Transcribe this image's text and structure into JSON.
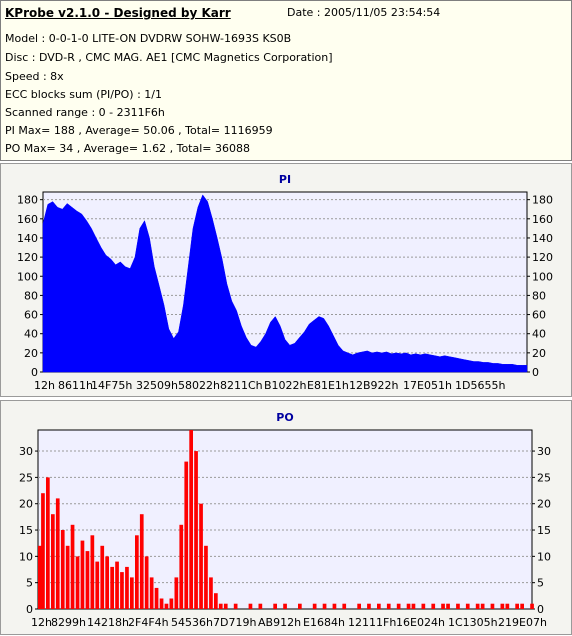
{
  "header": {
    "title": "KProbe v2.1.0 - Designed by Karr",
    "date": "Date : 2005/11/05 23:54:54",
    "lines": [
      "Model : 0-0-1-0 LITE-ON DVDRW SOHW-1693S KS0B",
      "Disc : DVD-R , CMC MAG. AE1 [CMC Magnetics Corporation]",
      "Speed : 8x",
      "ECC blocks sum (PI/PO) : 1/1",
      "Scanned range : 0 - 2311F6h",
      "PI Max= 188 , Average= 50.06 , Total= 1116959",
      "PO Max= 34 , Average= 1.62 , Total= 36088"
    ]
  },
  "chart_data": [
    {
      "type": "area",
      "title": "PI",
      "color": "#0000ff",
      "ylim": [
        0,
        188
      ],
      "yticks": [
        0,
        20,
        40,
        60,
        80,
        100,
        120,
        140,
        160,
        180
      ],
      "xticks": [
        "12h",
        "8611h",
        "14F75h",
        "32509h",
        "58022h",
        "8211Ch",
        "B1022h",
        "E81E1h",
        "12B922h",
        "17E051h",
        "1D5655h"
      ],
      "grid": true,
      "x_range": [
        0,
        1
      ],
      "points": [
        [
          0.0,
          155
        ],
        [
          0.01,
          175
        ],
        [
          0.02,
          178
        ],
        [
          0.03,
          172
        ],
        [
          0.04,
          170
        ],
        [
          0.05,
          176
        ],
        [
          0.06,
          172
        ],
        [
          0.07,
          168
        ],
        [
          0.08,
          165
        ],
        [
          0.09,
          158
        ],
        [
          0.1,
          150
        ],
        [
          0.11,
          140
        ],
        [
          0.12,
          130
        ],
        [
          0.13,
          122
        ],
        [
          0.14,
          118
        ],
        [
          0.15,
          112
        ],
        [
          0.16,
          115
        ],
        [
          0.17,
          110
        ],
        [
          0.18,
          108
        ],
        [
          0.19,
          120
        ],
        [
          0.2,
          150
        ],
        [
          0.21,
          158
        ],
        [
          0.22,
          140
        ],
        [
          0.23,
          110
        ],
        [
          0.24,
          90
        ],
        [
          0.25,
          70
        ],
        [
          0.26,
          45
        ],
        [
          0.27,
          35
        ],
        [
          0.28,
          42
        ],
        [
          0.29,
          70
        ],
        [
          0.3,
          110
        ],
        [
          0.31,
          150
        ],
        [
          0.32,
          172
        ],
        [
          0.33,
          185
        ],
        [
          0.34,
          178
        ],
        [
          0.35,
          160
        ],
        [
          0.36,
          140
        ],
        [
          0.37,
          118
        ],
        [
          0.38,
          92
        ],
        [
          0.39,
          74
        ],
        [
          0.4,
          64
        ],
        [
          0.41,
          48
        ],
        [
          0.42,
          36
        ],
        [
          0.43,
          28
        ],
        [
          0.44,
          26
        ],
        [
          0.45,
          32
        ],
        [
          0.46,
          40
        ],
        [
          0.47,
          52
        ],
        [
          0.48,
          58
        ],
        [
          0.49,
          48
        ],
        [
          0.5,
          34
        ],
        [
          0.51,
          28
        ],
        [
          0.52,
          30
        ],
        [
          0.53,
          36
        ],
        [
          0.54,
          42
        ],
        [
          0.55,
          50
        ],
        [
          0.56,
          54
        ],
        [
          0.57,
          58
        ],
        [
          0.58,
          56
        ],
        [
          0.59,
          48
        ],
        [
          0.6,
          38
        ],
        [
          0.61,
          28
        ],
        [
          0.62,
          22
        ],
        [
          0.63,
          20
        ],
        [
          0.64,
          18
        ],
        [
          0.65,
          20
        ],
        [
          0.66,
          21
        ],
        [
          0.67,
          22
        ],
        [
          0.68,
          20
        ],
        [
          0.69,
          21
        ],
        [
          0.7,
          20
        ],
        [
          0.71,
          21
        ],
        [
          0.72,
          19
        ],
        [
          0.73,
          20
        ],
        [
          0.74,
          19
        ],
        [
          0.75,
          20
        ],
        [
          0.76,
          18
        ],
        [
          0.77,
          19
        ],
        [
          0.78,
          18
        ],
        [
          0.79,
          19
        ],
        [
          0.8,
          18
        ],
        [
          0.81,
          17
        ],
        [
          0.82,
          16
        ],
        [
          0.83,
          17
        ],
        [
          0.84,
          16
        ],
        [
          0.85,
          15
        ],
        [
          0.86,
          14
        ],
        [
          0.87,
          13
        ],
        [
          0.88,
          12
        ],
        [
          0.89,
          11
        ],
        [
          0.9,
          11
        ],
        [
          0.91,
          10
        ],
        [
          0.92,
          10
        ],
        [
          0.93,
          9
        ],
        [
          0.94,
          9
        ],
        [
          0.95,
          8
        ],
        [
          0.96,
          8
        ],
        [
          0.97,
          8
        ],
        [
          0.98,
          7
        ],
        [
          0.99,
          7
        ],
        [
          1.0,
          7
        ]
      ]
    },
    {
      "type": "bar",
      "title": "PO",
      "color": "#ff0000",
      "ylim": [
        0,
        34
      ],
      "yticks": [
        0,
        5,
        10,
        15,
        20,
        25,
        30
      ],
      "xticks": [
        "12h",
        "8299h",
        "14218h",
        "2F4F4h",
        "54536h",
        "7D719h",
        "AB912h",
        "E1684h",
        "12111Fh",
        "16E024h",
        "1C1305h",
        "219E07h"
      ],
      "grid": true,
      "x_range": [
        0,
        1
      ],
      "points": [
        [
          0.0,
          12
        ],
        [
          0.01,
          22
        ],
        [
          0.02,
          25
        ],
        [
          0.03,
          18
        ],
        [
          0.04,
          21
        ],
        [
          0.05,
          15
        ],
        [
          0.06,
          12
        ],
        [
          0.07,
          16
        ],
        [
          0.08,
          10
        ],
        [
          0.09,
          13
        ],
        [
          0.1,
          11
        ],
        [
          0.11,
          14
        ],
        [
          0.12,
          9
        ],
        [
          0.13,
          12
        ],
        [
          0.14,
          10
        ],
        [
          0.15,
          8
        ],
        [
          0.16,
          9
        ],
        [
          0.17,
          7
        ],
        [
          0.18,
          8
        ],
        [
          0.19,
          6
        ],
        [
          0.2,
          14
        ],
        [
          0.21,
          18
        ],
        [
          0.22,
          10
        ],
        [
          0.23,
          6
        ],
        [
          0.24,
          4
        ],
        [
          0.25,
          2
        ],
        [
          0.26,
          1
        ],
        [
          0.27,
          2
        ],
        [
          0.28,
          6
        ],
        [
          0.29,
          16
        ],
        [
          0.3,
          28
        ],
        [
          0.31,
          34
        ],
        [
          0.32,
          30
        ],
        [
          0.33,
          20
        ],
        [
          0.34,
          12
        ],
        [
          0.35,
          6
        ],
        [
          0.36,
          3
        ],
        [
          0.37,
          1
        ],
        [
          0.38,
          1
        ],
        [
          0.39,
          0
        ],
        [
          0.4,
          1
        ],
        [
          0.41,
          0
        ],
        [
          0.42,
          0
        ],
        [
          0.43,
          1
        ],
        [
          0.44,
          0
        ],
        [
          0.45,
          1
        ],
        [
          0.46,
          0
        ],
        [
          0.47,
          0
        ],
        [
          0.48,
          1
        ],
        [
          0.49,
          0
        ],
        [
          0.5,
          1
        ],
        [
          0.51,
          0
        ],
        [
          0.52,
          0
        ],
        [
          0.53,
          1
        ],
        [
          0.54,
          0
        ],
        [
          0.55,
          0
        ],
        [
          0.56,
          1
        ],
        [
          0.57,
          0
        ],
        [
          0.58,
          1
        ],
        [
          0.59,
          0
        ],
        [
          0.6,
          1
        ],
        [
          0.61,
          0
        ],
        [
          0.62,
          1
        ],
        [
          0.63,
          0
        ],
        [
          0.64,
          0
        ],
        [
          0.65,
          1
        ],
        [
          0.66,
          0
        ],
        [
          0.67,
          1
        ],
        [
          0.68,
          0
        ],
        [
          0.69,
          1
        ],
        [
          0.7,
          0
        ],
        [
          0.71,
          1
        ],
        [
          0.72,
          0
        ],
        [
          0.73,
          1
        ],
        [
          0.74,
          0
        ],
        [
          0.75,
          1
        ],
        [
          0.76,
          1
        ],
        [
          0.77,
          0
        ],
        [
          0.78,
          1
        ],
        [
          0.79,
          0
        ],
        [
          0.8,
          1
        ],
        [
          0.81,
          0
        ],
        [
          0.82,
          1
        ],
        [
          0.83,
          1
        ],
        [
          0.84,
          0
        ],
        [
          0.85,
          1
        ],
        [
          0.86,
          0
        ],
        [
          0.87,
          1
        ],
        [
          0.88,
          0
        ],
        [
          0.89,
          1
        ],
        [
          0.9,
          1
        ],
        [
          0.91,
          0
        ],
        [
          0.92,
          1
        ],
        [
          0.93,
          0
        ],
        [
          0.94,
          1
        ],
        [
          0.95,
          1
        ],
        [
          0.96,
          0
        ],
        [
          0.97,
          1
        ],
        [
          0.98,
          1
        ],
        [
          0.99,
          0
        ],
        [
          1.0,
          1
        ]
      ]
    }
  ]
}
